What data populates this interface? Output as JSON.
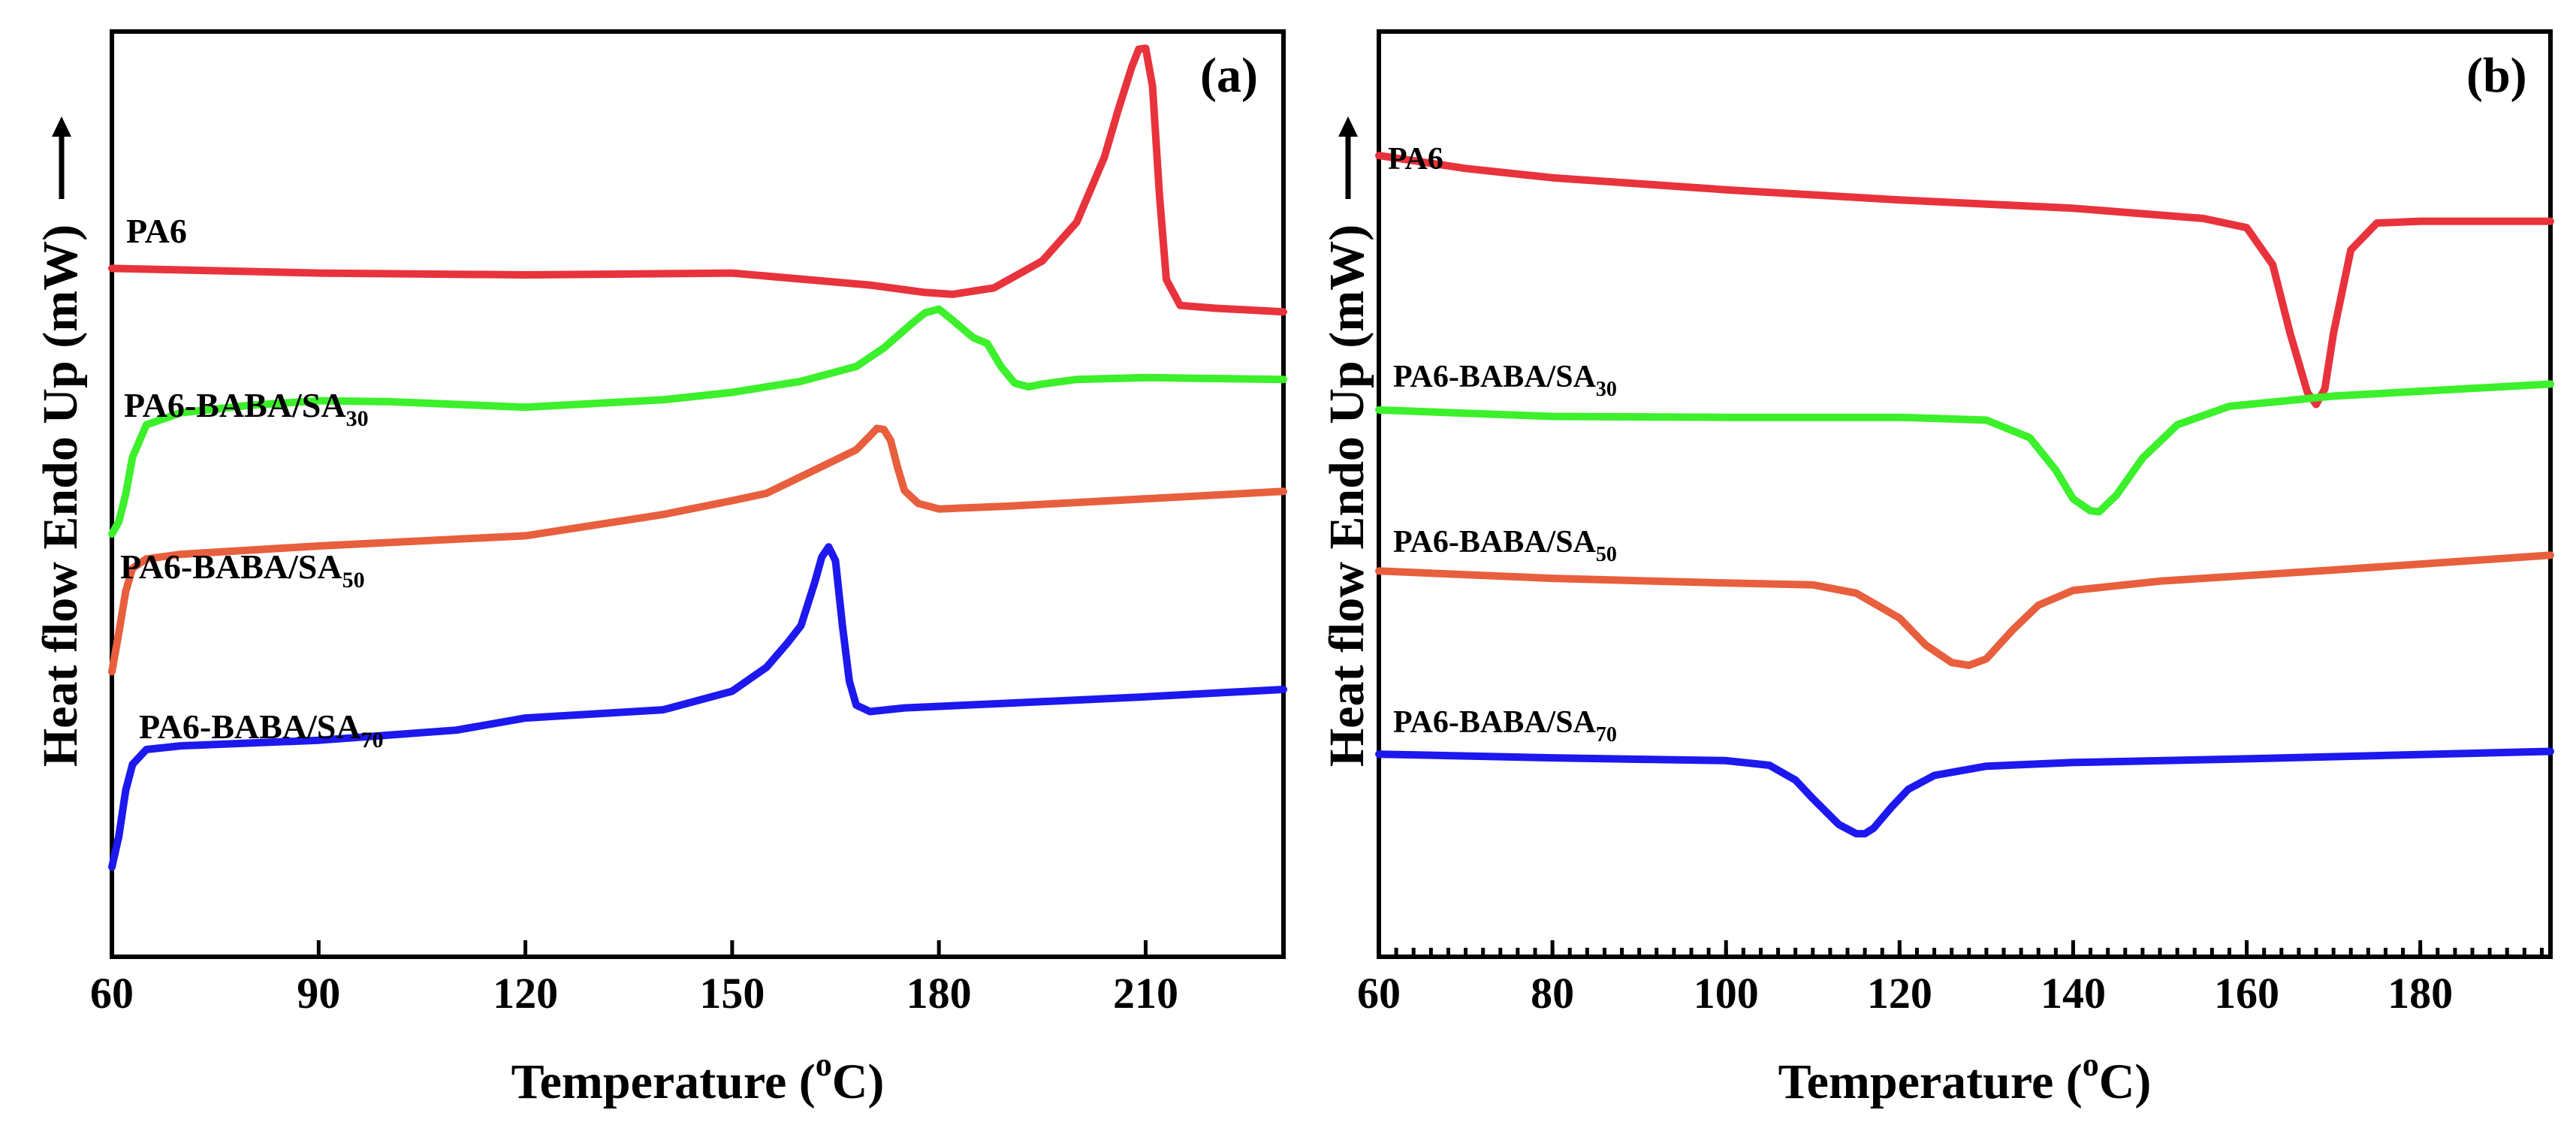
{
  "figure": {
    "x_title_main": "Temperature (",
    "x_title_sup": "o",
    "x_title_end": "C)",
    "y_title": "Heat flow Endo Up (mW)"
  },
  "chart_data": [
    {
      "type": "line",
      "panel_label": "(a)",
      "title": "",
      "xlabel": "Temperature (oC)",
      "ylabel": "Heat flow Endo Up (mW)",
      "xlim": [
        60,
        230
      ],
      "ylim": [
        0,
        100
      ],
      "yticks_labeled": false,
      "xticks": [
        60,
        90,
        120,
        150,
        180,
        210
      ],
      "xtick_labels": [
        "60",
        "90",
        "120",
        "150",
        "180",
        "210"
      ],
      "series": [
        {
          "name": "PA6",
          "name_main": "PA6",
          "name_sub": "",
          "color": "#e8333c",
          "x": [
            60,
            90,
            120,
            150,
            170,
            178,
            182,
            188,
            195,
            200,
            204,
            206,
            208,
            209,
            210,
            211,
            212,
            213,
            215,
            220,
            225,
            230
          ],
          "y": [
            74.4,
            73.9,
            73.7,
            73.9,
            72.6,
            71.8,
            71.6,
            72.3,
            75.2,
            79.4,
            86.4,
            91.5,
            96.2,
            98.1,
            98.2,
            94.1,
            82.4,
            73.2,
            70.4,
            70.1,
            69.9,
            69.7
          ]
        },
        {
          "name": "PA6-BABA/SA30",
          "name_main": "PA6-BABA/SA",
          "name_sub": "30",
          "color": "#3cf02b",
          "x": [
            60,
            61,
            62,
            63,
            65,
            70,
            80,
            90,
            100,
            120,
            140,
            150,
            160,
            168,
            172,
            176,
            178,
            180,
            182,
            185,
            187,
            189,
            191,
            193,
            195,
            200,
            210,
            230
          ],
          "y": [
            45.7,
            47.0,
            50.0,
            54.0,
            57.5,
            58.8,
            59.6,
            60.1,
            60.0,
            59.4,
            60.2,
            61.0,
            62.2,
            63.8,
            65.8,
            68.4,
            69.6,
            70.0,
            68.8,
            66.9,
            66.3,
            63.8,
            62.0,
            61.6,
            61.9,
            62.4,
            62.6,
            62.4
          ]
        },
        {
          "name": "PA6-BABA/SA50",
          "name_main": "PA6-BABA/SA",
          "name_sub": "50",
          "color": "#e85f3e",
          "x": [
            60,
            61,
            62,
            63,
            65,
            70,
            90,
            120,
            140,
            150,
            155,
            160,
            165,
            168,
            170,
            171,
            172,
            173,
            174,
            175,
            177,
            180,
            190,
            200,
            230
          ],
          "y": [
            30.8,
            35.0,
            39.5,
            42.0,
            43.0,
            43.5,
            44.4,
            45.5,
            47.8,
            49.3,
            50.1,
            51.9,
            53.7,
            54.8,
            56.3,
            57.1,
            57.0,
            55.8,
            52.9,
            50.4,
            49.0,
            48.4,
            48.7,
            49.1,
            50.3
          ]
        },
        {
          "name": "PA6-BABA/SA70",
          "name_main": "PA6-BABA/SA",
          "name_sub": "70",
          "color": "#1d18ee",
          "x": [
            60,
            61,
            62,
            63,
            65,
            70,
            90,
            110,
            120,
            140,
            150,
            155,
            158,
            160,
            162,
            163,
            164,
            165,
            166,
            167,
            168,
            170,
            175,
            190,
            210,
            230
          ],
          "y": [
            9.7,
            13.0,
            18.0,
            20.8,
            22.4,
            22.8,
            23.4,
            24.5,
            25.8,
            26.7,
            28.7,
            31.3,
            33.9,
            35.8,
            40.5,
            43.2,
            44.3,
            42.8,
            35.8,
            29.8,
            27.2,
            26.5,
            26.9,
            27.4,
            28.1,
            28.9
          ]
        }
      ]
    },
    {
      "type": "line",
      "panel_label": "(b)",
      "title": "",
      "xlabel": "Temperature (oC)",
      "ylabel": "Heat flow Endo Up (mW)",
      "xlim": [
        60,
        195
      ],
      "ylim": [
        0,
        100
      ],
      "yticks_labeled": false,
      "xticks": [
        60,
        80,
        100,
        120,
        140,
        160,
        180
      ],
      "xtick_labels": [
        "60",
        "80",
        "100",
        "120",
        "140",
        "160",
        "180"
      ],
      "series": [
        {
          "name": "PA6",
          "name_main": "PA6",
          "name_sub": "",
          "color": "#e8333c",
          "x": [
            60,
            70,
            80,
            100,
            120,
            140,
            155,
            160,
            163,
            165,
            167,
            168,
            169,
            170,
            172,
            175,
            180,
            195
          ],
          "y": [
            86.6,
            85.2,
            84.2,
            82.9,
            81.8,
            80.9,
            79.8,
            78.8,
            74.8,
            67.4,
            61.0,
            59.7,
            61.4,
            67.4,
            76.4,
            79.3,
            79.5,
            79.5
          ]
        },
        {
          "name": "PA6-BABA/SA30",
          "name_main": "PA6-BABA/SA",
          "name_sub": "30",
          "color": "#3cf02b",
          "x": [
            60,
            80,
            100,
            120,
            130,
            135,
            138,
            140,
            142,
            143,
            145,
            148,
            152,
            158,
            170,
            195
          ],
          "y": [
            59.1,
            58.4,
            58.3,
            58.3,
            58.0,
            56.1,
            52.6,
            49.5,
            48.2,
            48.1,
            49.9,
            53.9,
            57.5,
            59.5,
            60.6,
            61.9
          ]
        },
        {
          "name": "PA6-BABA/SA50",
          "name_main": "PA6-BABA/SA",
          "name_sub": "50",
          "color": "#e85f3e",
          "x": [
            60,
            80,
            100,
            110,
            115,
            120,
            123,
            126,
            128,
            130,
            133,
            136,
            140,
            150,
            170,
            195
          ],
          "y": [
            41.7,
            40.9,
            40.4,
            40.2,
            39.3,
            36.6,
            33.7,
            31.8,
            31.5,
            32.2,
            35.3,
            38.0,
            39.6,
            40.6,
            41.8,
            43.4
          ]
        },
        {
          "name": "PA6-BABA/SA70",
          "name_main": "PA6-BABA/SA",
          "name_sub": "70",
          "color": "#1d18ee",
          "x": [
            60,
            80,
            100,
            105,
            108,
            110,
            113,
            115,
            116,
            117,
            119,
            121,
            124,
            130,
            140,
            160,
            195
          ],
          "y": [
            21.9,
            21.5,
            21.2,
            20.7,
            19.1,
            17.1,
            14.3,
            13.3,
            13.3,
            13.9,
            16.1,
            18.1,
            19.6,
            20.6,
            21.0,
            21.4,
            22.2
          ]
        }
      ]
    }
  ]
}
